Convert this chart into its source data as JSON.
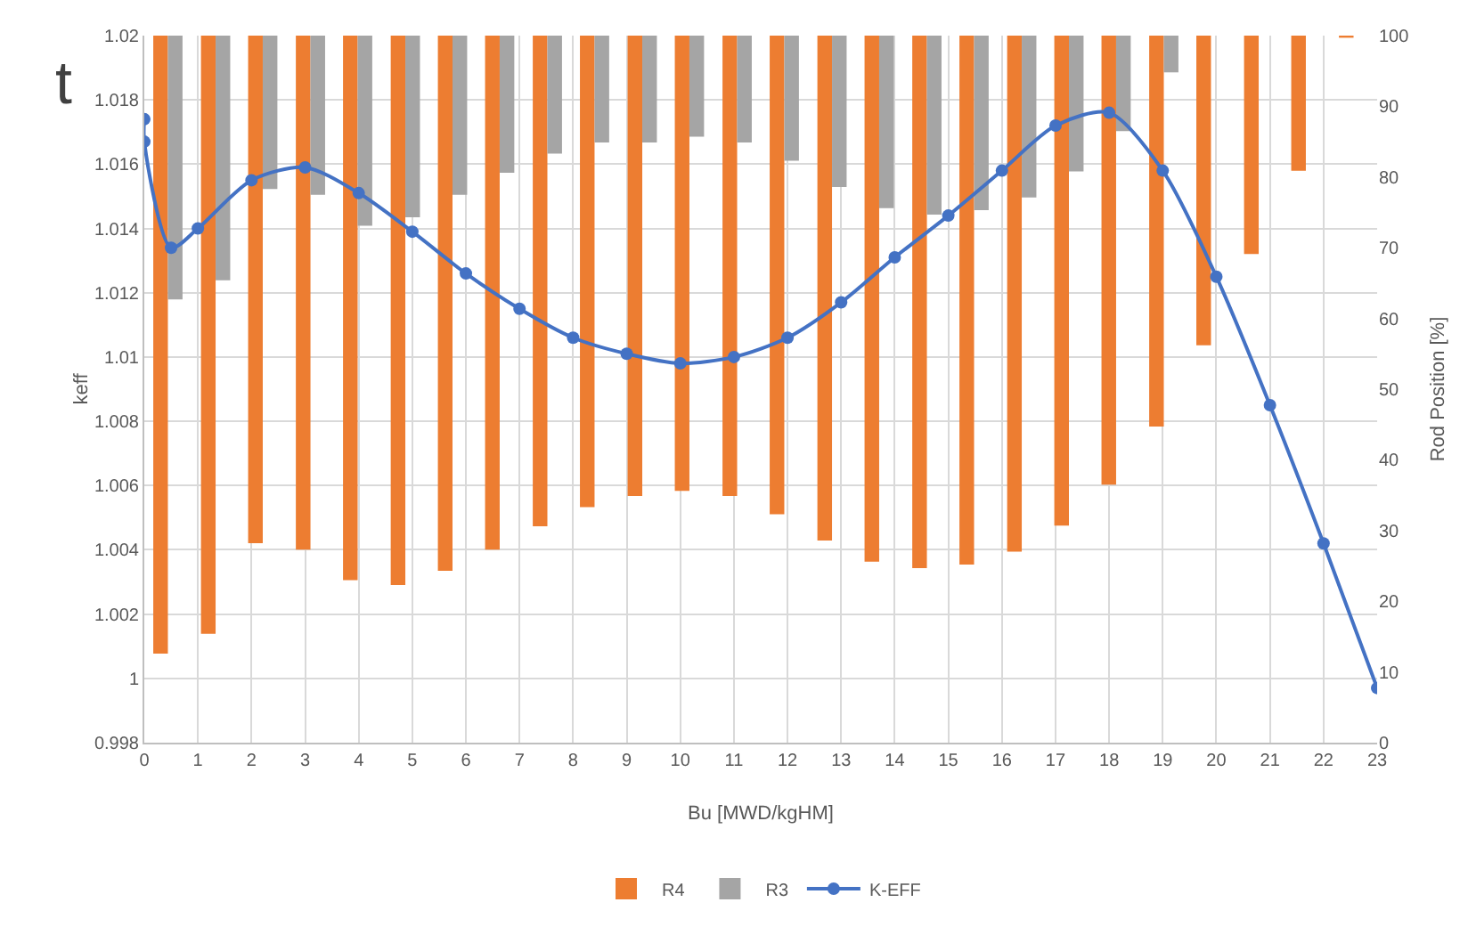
{
  "chart_data": {
    "type": "bar",
    "xlabel": "Bu [MWD/kgHM]",
    "ylabel": "keff",
    "y2label": "Rod Position [%]",
    "annotations": [
      "t"
    ],
    "series": [
      {
        "name": "R4",
        "color": "#ed7d31",
        "axis": "y2",
        "x": [
          0.44,
          1.33,
          2.21,
          3.1,
          3.98,
          4.87,
          5.75,
          6.63,
          7.52,
          8.4,
          9.29,
          10.17,
          11.06,
          11.94,
          12.83,
          13.71,
          14.6,
          15.48,
          16.37,
          17.25,
          18.13,
          19.02,
          19.9,
          20.79,
          21.67,
          22.56
        ],
        "base": [
          12.6,
          15.4,
          28.2,
          27.3,
          23.0,
          22.3,
          24.3,
          27.3,
          30.6,
          33.3,
          34.9,
          35.6,
          34.9,
          32.3,
          28.6,
          25.6,
          24.7,
          25.2,
          27.0,
          30.7,
          36.5,
          44.7,
          56.2,
          69.1,
          80.9,
          99.7
        ],
        "values": [
          87.4,
          84.6,
          71.8,
          72.7,
          77.0,
          77.7,
          75.7,
          72.7,
          69.4,
          66.7,
          65.1,
          64.4,
          65.1,
          67.7,
          71.4,
          74.4,
          75.3,
          74.8,
          73.0,
          69.3,
          63.5,
          55.3,
          43.8,
          30.9,
          19.1,
          0.3
        ]
      },
      {
        "name": "R3",
        "color": "#a5a5a5",
        "axis": "y2",
        "x": [
          0.44,
          1.33,
          2.21,
          3.1,
          3.98,
          4.87,
          5.75,
          6.63,
          7.52,
          8.4,
          9.29,
          10.17,
          11.06,
          11.94,
          12.83,
          13.71,
          14.6,
          15.48,
          16.37,
          17.25,
          18.13,
          19.02
        ],
        "base": [
          62.7,
          65.4,
          78.3,
          77.5,
          73.1,
          74.3,
          77.5,
          80.6,
          83.3,
          84.9,
          84.9,
          85.7,
          84.9,
          82.3,
          78.6,
          75.6,
          74.7,
          75.3,
          77.1,
          80.8,
          86.5,
          94.8
        ],
        "values": [
          37.3,
          34.6,
          21.7,
          22.5,
          26.9,
          25.7,
          22.5,
          19.4,
          16.7,
          15.1,
          15.1,
          14.3,
          15.1,
          17.7,
          21.4,
          24.4,
          25.3,
          24.7,
          22.9,
          19.2,
          13.5,
          5.2
        ]
      },
      {
        "name": "K-EFF",
        "type": "line",
        "color": "#4472c4",
        "marker": "circle",
        "line_style": "solid",
        "x": [
          0,
          0,
          0.5,
          1,
          2,
          3,
          4,
          5,
          6,
          7,
          8,
          9,
          10,
          11,
          12,
          13,
          14,
          15,
          16,
          17,
          18,
          19,
          20,
          21,
          22,
          23
        ],
        "values": [
          1.0174,
          1.0167,
          1.0134,
          1.014,
          1.0155,
          1.0159,
          1.0151,
          1.0139,
          1.0126,
          1.0115,
          1.0106,
          1.0101,
          1.0098,
          1.01,
          1.0106,
          1.0117,
          1.0131,
          1.0144,
          1.0158,
          1.0172,
          1.0176,
          1.0158,
          1.0125,
          1.0085,
          1.0042,
          0.9997
        ]
      }
    ],
    "xlim": [
      0,
      23
    ],
    "xticks": [
      0,
      1,
      2,
      3,
      4,
      5,
      6,
      7,
      8,
      9,
      10,
      11,
      12,
      13,
      14,
      15,
      16,
      17,
      18,
      19,
      20,
      21,
      22,
      23
    ],
    "ylim": [
      0.998,
      1.02
    ],
    "yticks": [
      0.998,
      1,
      1.002,
      1.004,
      1.006,
      1.008,
      1.01,
      1.012,
      1.014,
      1.016,
      1.018,
      1.02
    ],
    "y2lim": [
      0,
      100
    ],
    "y2ticks": [
      0,
      10,
      20,
      30,
      40,
      50,
      60,
      70,
      80,
      90,
      100
    ],
    "grid": true,
    "legend": "bottom"
  }
}
